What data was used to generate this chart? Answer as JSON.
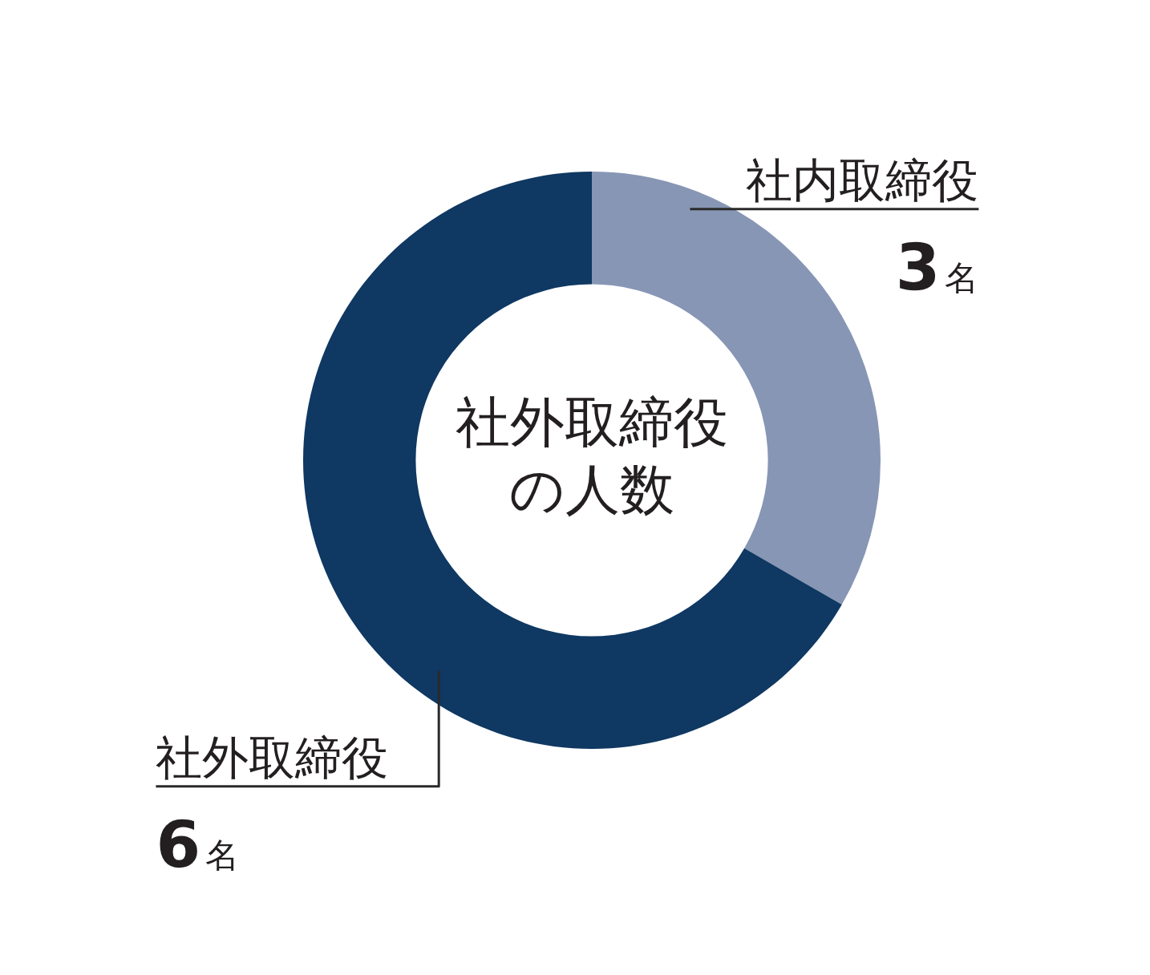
{
  "chart_data": {
    "type": "donut",
    "title": "社外取締役の人数",
    "categories": [
      "社内取締役",
      "社外取締役"
    ],
    "values": [
      3,
      6
    ],
    "colors": [
      "#8796b4",
      "#0f3862"
    ],
    "value_labels": [
      "3名",
      "6名"
    ]
  }
}
